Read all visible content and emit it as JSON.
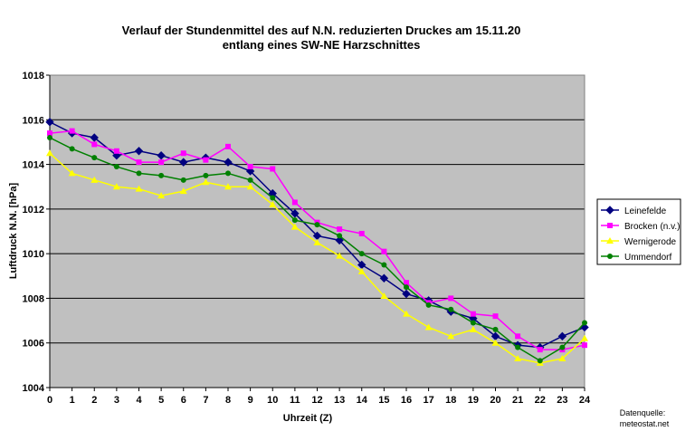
{
  "chart_data": {
    "type": "line",
    "title_lines": [
      "Verlauf der Stundenmittel des auf N.N. reduzierten Druckes  am 15.11.20",
      "entlang eines SW-NE Harzschnittes"
    ],
    "xlabel": "Uhrzeit (Z)",
    "ylabel": "Luftdruck N.N. [hPa]",
    "x": [
      0,
      1,
      2,
      3,
      4,
      5,
      6,
      7,
      8,
      9,
      10,
      11,
      12,
      13,
      14,
      15,
      16,
      17,
      18,
      19,
      20,
      21,
      22,
      23,
      24
    ],
    "xlim": [
      0,
      24
    ],
    "ylim": [
      1004,
      1018
    ],
    "yticks": [
      1004,
      1006,
      1008,
      1010,
      1012,
      1014,
      1016,
      1018
    ],
    "grid": "horizontal",
    "plot_background": "#c0c0c0",
    "legend_position": "right",
    "series": [
      {
        "name": "Leinefelde",
        "color": "#000080",
        "marker": "diamond",
        "values": [
          1015.9,
          1015.4,
          1015.2,
          1014.4,
          1014.6,
          1014.4,
          1014.1,
          1014.3,
          1014.1,
          1013.7,
          1012.7,
          1011.8,
          1010.8,
          1010.6,
          1009.5,
          1008.9,
          1008.2,
          1007.9,
          1007.4,
          1007.1,
          1006.3,
          1005.9,
          1005.8,
          1006.3,
          1006.7
        ]
      },
      {
        "name": "Brocken (n.v.)",
        "color": "#ff00ff",
        "marker": "square",
        "values": [
          1015.4,
          1015.5,
          1014.9,
          1014.6,
          1014.1,
          1014.1,
          1014.5,
          1014.2,
          1014.8,
          1013.9,
          1013.8,
          1012.3,
          1011.4,
          1011.1,
          1010.9,
          1010.1,
          1008.7,
          1007.8,
          1008.0,
          1007.3,
          1007.2,
          1006.3,
          1005.7,
          1005.7,
          1005.9
        ]
      },
      {
        "name": "Wernigerode",
        "color": "#ffff00",
        "marker": "triangle",
        "values": [
          1014.5,
          1013.6,
          1013.3,
          1013.0,
          1012.9,
          1012.6,
          1012.8,
          1013.2,
          1013.0,
          1013.0,
          1012.2,
          1011.2,
          1010.5,
          1009.9,
          1009.2,
          1008.1,
          1007.3,
          1006.7,
          1006.3,
          1006.6,
          1006.0,
          1005.3,
          1005.1,
          1005.3,
          1006.2
        ]
      },
      {
        "name": "Ummendorf",
        "color": "#008000",
        "marker": "circle",
        "values": [
          1015.2,
          1014.7,
          1014.3,
          1013.9,
          1013.6,
          1013.5,
          1013.3,
          1013.5,
          1013.6,
          1013.3,
          1012.5,
          1011.5,
          1011.3,
          1010.8,
          1010.0,
          1009.5,
          1008.5,
          1007.7,
          1007.5,
          1006.9,
          1006.6,
          1005.8,
          1005.2,
          1005.8,
          1006.9
        ]
      }
    ]
  },
  "source": {
    "label": "Datenquelle:",
    "site": "meteostat.net"
  }
}
